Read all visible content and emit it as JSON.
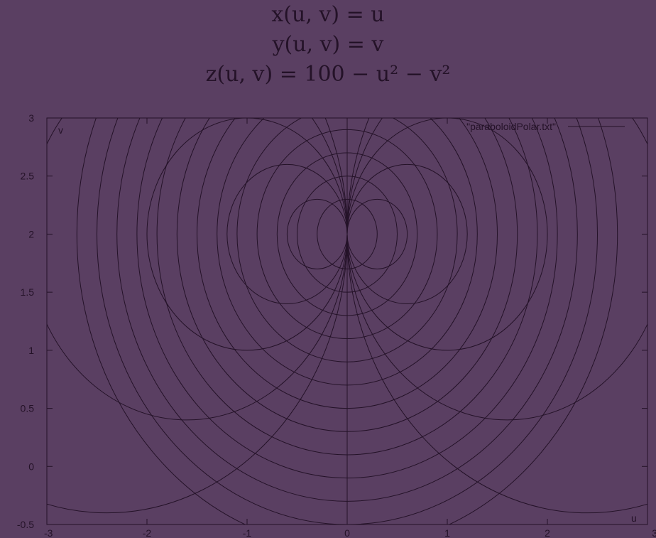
{
  "header": {
    "eq_x": "x(u, v) = u",
    "eq_y": "y(u, v) = v",
    "eq_z": "z(u, v) = 100 − u² − v²"
  },
  "colors": {
    "background": "#5a3f62",
    "line": "#241228"
  },
  "chart_data": {
    "type": "line",
    "description_of_curves": "family of circular arcs through (0,2) plus concentric circles about (0,2) clipped to v >= -0.5",
    "xlabel": "u",
    "ylabel": "v",
    "xlim": [
      -3,
      3
    ],
    "ylim": [
      -0.5,
      3
    ],
    "x_ticks": [
      "-3",
      "-2",
      "-1",
      "0",
      "1",
      "2",
      "3"
    ],
    "y_ticks": [
      "-0.5",
      "0",
      "0.5",
      "1",
      "1.5",
      "2",
      "2.5",
      "3"
    ],
    "x_tick_values": [
      -3,
      -2,
      -1,
      0,
      1,
      2,
      3
    ],
    "y_tick_values": [
      -0.5,
      0,
      0.5,
      1,
      1.5,
      2,
      2.5,
      3
    ],
    "legend": {
      "label": "\"paraboloidPolar.txt\"",
      "position": "top-right"
    },
    "grid": false,
    "series": [
      {
        "name": "\"paraboloidPolar.txt\"",
        "family": "concentric",
        "center": [
          0,
          2
        ],
        "radii": [
          0.3,
          0.5,
          0.7,
          0.9,
          1.1,
          1.3,
          1.5,
          1.7,
          1.9,
          2.1,
          2.3,
          2.5,
          2.7
        ]
      },
      {
        "name": "\"paraboloidPolar.txt\"",
        "family": "pencil",
        "passes_through": [
          0,
          2
        ],
        "circle_centers_u": [
          -2.4,
          -1.6,
          -1.0,
          -0.6,
          -0.3,
          0.3,
          0.6,
          1.0,
          1.6,
          2.4
        ],
        "vertical_line_u": 0
      }
    ]
  }
}
